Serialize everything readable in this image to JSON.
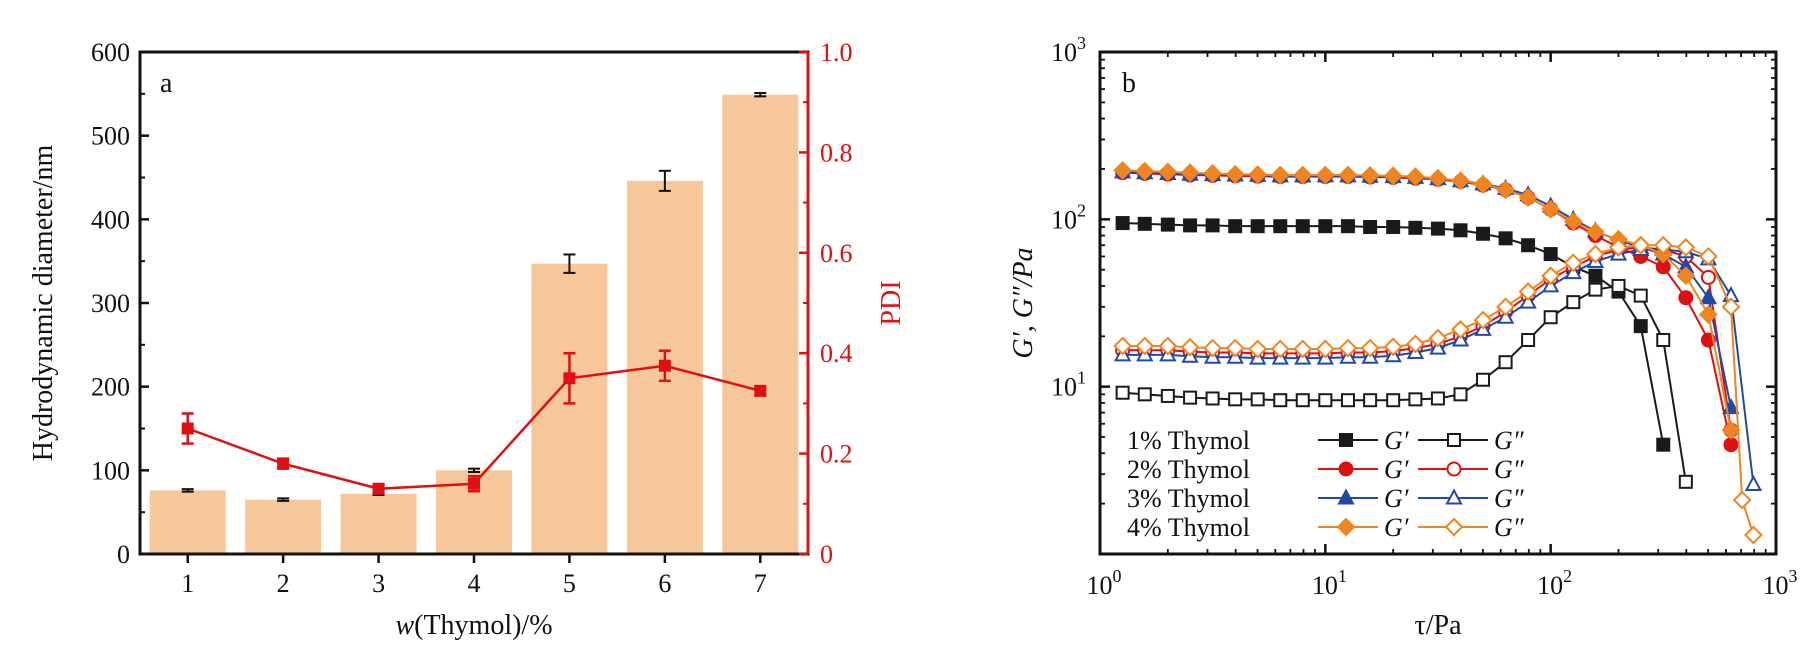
{
  "colors": {
    "bar": "#f6c79a",
    "pdi_line": "#e01010",
    "axis": "#111111",
    "c1": "#1a1a1a",
    "c2": "#e01010",
    "c3": "#1f4aa8",
    "c4": "#f0841e"
  },
  "chart_data": [
    {
      "id": "a",
      "type": "bar",
      "panel_label": "a",
      "title": "",
      "xlabel": "w(Thymol)/%",
      "ylabel": "Hydrodynamic diameter/nm",
      "y2label": "PDI",
      "categories": [
        "1",
        "2",
        "3",
        "4",
        "5",
        "6",
        "7"
      ],
      "ylim": [
        0,
        600
      ],
      "y2lim": [
        0,
        1.0
      ],
      "yticks": [
        "0",
        "100",
        "200",
        "300",
        "400",
        "500",
        "600"
      ],
      "y2ticks": [
        "0",
        "0.2",
        "0.4",
        "0.6",
        "0.8",
        "1.0"
      ],
      "series": [
        {
          "name": "Hydrodynamic diameter",
          "type": "bar",
          "axis": "left",
          "values": [
            76,
            65,
            72,
            100,
            347,
            446,
            549
          ],
          "errors": [
            1.5,
            1.5,
            1.5,
            2,
            11,
            12,
            2
          ]
        },
        {
          "name": "PDI",
          "type": "line",
          "axis": "right",
          "values": [
            0.25,
            0.18,
            0.13,
            0.14,
            0.35,
            0.375,
            0.325
          ],
          "errors": [
            0.03,
            0.01,
            0.008,
            0.015,
            0.05,
            0.03,
            0.008
          ]
        }
      ],
      "grid": false
    },
    {
      "id": "b",
      "type": "line",
      "panel_label": "b",
      "title": "",
      "xlabel": "τ/Pa",
      "ylabel": "G′, G″/Pa",
      "xscale": "log",
      "yscale": "log",
      "xlim": [
        1,
        1000
      ],
      "ylim": [
        1,
        1000
      ],
      "xticks": [
        "10^0",
        "10^1",
        "10^2",
        "10^3"
      ],
      "yticks": [
        "10^1",
        "10^2",
        "10^3"
      ],
      "legend_position": "bottom-left",
      "legend": [
        {
          "label": "1% Thymol",
          "gp": "G′",
          "gpp": "G″"
        },
        {
          "label": "2% Thymol",
          "gp": "G′",
          "gpp": "G″"
        },
        {
          "label": "3% Thymol",
          "gp": "G′",
          "gpp": "G″"
        },
        {
          "label": "4% Thymol",
          "gp": "G′",
          "gpp": "G″"
        }
      ],
      "series": [
        {
          "name": "1% Thymol G′",
          "marker": "square",
          "filled": true,
          "x": [
            1.26,
            1.58,
            2,
            2.51,
            3.16,
            3.98,
            5.01,
            6.31,
            7.94,
            10,
            12.6,
            15.8,
            20,
            25.1,
            31.6,
            39.8,
            50.1,
            63.1,
            79.4,
            100,
            126,
            158,
            200,
            251,
            316
          ],
          "y": [
            95,
            94,
            93,
            92,
            92,
            91,
            91,
            91,
            91,
            91,
            91,
            90,
            90,
            89,
            88,
            86,
            82,
            77,
            70,
            62,
            52,
            46,
            37,
            23,
            4.5
          ]
        },
        {
          "name": "1% Thymol G″",
          "marker": "square",
          "filled": false,
          "x": [
            1.26,
            1.58,
            2,
            2.51,
            3.16,
            3.98,
            5.01,
            6.31,
            7.94,
            10,
            12.6,
            15.8,
            20,
            25.1,
            31.6,
            39.8,
            50.1,
            63.1,
            79.4,
            100,
            126,
            158,
            200,
            251,
            316,
            398
          ],
          "y": [
            9.2,
            9,
            8.8,
            8.6,
            8.5,
            8.4,
            8.4,
            8.3,
            8.3,
            8.3,
            8.3,
            8.3,
            8.3,
            8.4,
            8.5,
            9,
            11,
            14,
            19,
            26,
            32,
            38,
            40,
            35,
            19,
            2.7
          ]
        },
        {
          "name": "2% Thymol G′",
          "marker": "circle",
          "filled": true,
          "x": [
            1.26,
            1.58,
            2,
            2.51,
            3.16,
            3.98,
            5.01,
            6.31,
            7.94,
            10,
            12.6,
            15.8,
            20,
            25.1,
            31.6,
            39.8,
            50.1,
            63.1,
            79.4,
            100,
            126,
            158,
            200,
            251,
            316,
            398,
            501,
            631
          ],
          "y": [
            190,
            188,
            186,
            184,
            183,
            182,
            181,
            180,
            180,
            180,
            180,
            179,
            178,
            176,
            173,
            168,
            160,
            150,
            135,
            115,
            95,
            80,
            68,
            60,
            52,
            34,
            19,
            4.5
          ]
        },
        {
          "name": "2% Thymol G″",
          "marker": "circle",
          "filled": false,
          "x": [
            1.26,
            1.58,
            2,
            2.51,
            3.16,
            3.98,
            5.01,
            6.31,
            7.94,
            10,
            12.6,
            15.8,
            20,
            25.1,
            31.6,
            39.8,
            50.1,
            63.1,
            79.4,
            100,
            126,
            158,
            200,
            251,
            316,
            398,
            501,
            631
          ],
          "y": [
            16.5,
            16.5,
            16.5,
            16.2,
            16,
            16,
            15.8,
            15.8,
            15.8,
            15.8,
            16,
            16,
            16.3,
            17,
            18,
            20,
            23,
            28,
            35,
            44,
            52,
            60,
            66,
            68,
            66,
            60,
            45,
            5.5
          ]
        },
        {
          "name": "3% Thymol G′",
          "marker": "triangle",
          "filled": true,
          "x": [
            1.26,
            1.58,
            2,
            2.51,
            3.16,
            3.98,
            5.01,
            6.31,
            7.94,
            10,
            12.6,
            15.8,
            20,
            25.1,
            31.6,
            39.8,
            50.1,
            63.1,
            79.4,
            100,
            126,
            158,
            200,
            251,
            316,
            398,
            501,
            631
          ],
          "y": [
            192,
            190,
            188,
            186,
            185,
            184,
            183,
            182,
            182,
            182,
            182,
            181,
            180,
            178,
            175,
            170,
            163,
            153,
            140,
            120,
            100,
            85,
            75,
            68,
            62,
            52,
            34,
            7.5
          ]
        },
        {
          "name": "3% Thymol G″",
          "marker": "triangle",
          "filled": false,
          "x": [
            1.26,
            1.58,
            2,
            2.51,
            3.16,
            3.98,
            5.01,
            6.31,
            7.94,
            10,
            12.6,
            15.8,
            20,
            25.1,
            31.6,
            39.8,
            50.1,
            63.1,
            79.4,
            100,
            126,
            158,
            200,
            251,
            316,
            398,
            501,
            631,
            794
          ],
          "y": [
            15.5,
            15.5,
            15.5,
            15.2,
            15,
            15,
            14.8,
            14.8,
            14.8,
            14.8,
            15,
            15,
            15.3,
            16,
            17,
            19,
            22,
            26,
            32,
            40,
            48,
            56,
            62,
            66,
            66,
            64,
            58,
            35,
            2.6
          ]
        },
        {
          "name": "4% Thymol G′",
          "marker": "diamond",
          "filled": true,
          "x": [
            1.26,
            1.58,
            2,
            2.51,
            3.16,
            3.98,
            5.01,
            6.31,
            7.94,
            10,
            12.6,
            15.8,
            20,
            25.1,
            31.6,
            39.8,
            50.1,
            63.1,
            79.4,
            100,
            126,
            158,
            200,
            251,
            316,
            398,
            501,
            631
          ],
          "y": [
            196,
            194,
            192,
            190,
            188,
            186,
            185,
            184,
            184,
            184,
            184,
            183,
            182,
            180,
            176,
            170,
            162,
            150,
            135,
            115,
            97,
            84,
            76,
            70,
            62,
            46,
            27,
            5.5
          ]
        },
        {
          "name": "4% Thymol G″",
          "marker": "diamond",
          "filled": false,
          "x": [
            1.26,
            1.58,
            2,
            2.51,
            3.16,
            3.98,
            5.01,
            6.31,
            7.94,
            10,
            12.6,
            15.8,
            20,
            25.1,
            31.6,
            39.8,
            50.1,
            63.1,
            79.4,
            100,
            126,
            158,
            200,
            251,
            316,
            398,
            501,
            631,
            708,
            794
          ],
          "y": [
            17.5,
            17.5,
            17.5,
            17.2,
            17,
            17,
            16.8,
            16.8,
            16.8,
            16.8,
            17,
            17,
            17.3,
            18,
            19.5,
            22,
            25,
            30,
            37,
            46,
            55,
            62,
            68,
            70,
            70,
            68,
            60,
            30,
            2.1,
            1.3
          ]
        }
      ],
      "grid": false
    }
  ]
}
